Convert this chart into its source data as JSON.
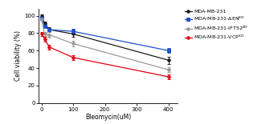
{
  "x": [
    0,
    10,
    25,
    100,
    400
  ],
  "series": [
    {
      "label": "MDA-MB-231",
      "color": "#1a1a1a",
      "marker": "o",
      "y": [
        100,
        91,
        84,
        79,
        49
      ],
      "yerr": [
        1.5,
        2.5,
        2.5,
        3,
        4
      ]
    },
    {
      "label": "MDA-MB-231-ΔEN$^{KO}$",
      "color": "#1f50c8",
      "marker": "s",
      "y": [
        97,
        88,
        84,
        82,
        60
      ],
      "yerr": [
        1.5,
        2,
        2,
        2.5,
        3
      ]
    },
    {
      "label": "MDA-MB-231-IFT52$^{KO}$",
      "color": "#999999",
      "marker": "o",
      "y": [
        96,
        79,
        78,
        68,
        38
      ],
      "yerr": [
        2,
        2.5,
        3,
        3.5,
        3
      ]
    },
    {
      "label": "MDA-MB-231-VCP$^{KO}$",
      "color": "#e00010",
      "marker": "o",
      "y": [
        79,
        73,
        64,
        52,
        30
      ],
      "yerr": [
        2,
        2.5,
        2.5,
        3,
        2.5
      ]
    }
  ],
  "xlabel": "Bleomycin(uM)",
  "ylabel": "Cell viability (%)",
  "xlim": [
    -8,
    430
  ],
  "ylim": [
    0,
    108
  ],
  "xticks": [
    0,
    100,
    200,
    300,
    400
  ],
  "yticks": [
    0,
    20,
    40,
    60,
    80,
    100
  ]
}
